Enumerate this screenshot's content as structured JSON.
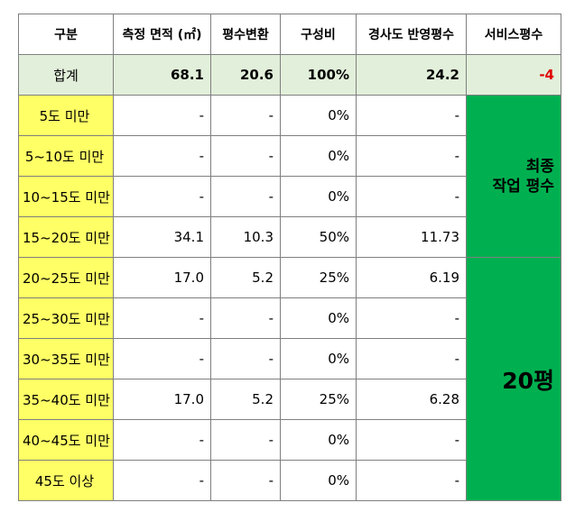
{
  "headers": [
    "구분",
    "측정 면적 (㎡)",
    "평수변환",
    "구성비",
    "경사도 반영평수",
    "서비스평수"
  ],
  "total": {
    "label": "합계",
    "area": "68.1",
    "pyeong": "20.6",
    "ratio": "100%",
    "slope_pyeong": "24.2",
    "service": "-4"
  },
  "rows": [
    {
      "label": "5도 미만",
      "area": "-",
      "pyeong": "-",
      "ratio": "0%",
      "slope_pyeong": "-"
    },
    {
      "label": "5~10도 미만",
      "area": "-",
      "pyeong": "-",
      "ratio": "0%",
      "slope_pyeong": "-"
    },
    {
      "label": "10~15도 미만",
      "area": "-",
      "pyeong": "-",
      "ratio": "0%",
      "slope_pyeong": "-"
    },
    {
      "label": "15~20도 미만",
      "area": "34.1",
      "pyeong": "10.3",
      "ratio": "50%",
      "slope_pyeong": "11.73"
    },
    {
      "label": "20~25도 미만",
      "area": "17.0",
      "pyeong": "5.2",
      "ratio": "25%",
      "slope_pyeong": "6.19"
    },
    {
      "label": "25~30도 미만",
      "area": "-",
      "pyeong": "-",
      "ratio": "0%",
      "slope_pyeong": "-"
    },
    {
      "label": "30~35도 미만",
      "area": "-",
      "pyeong": "-",
      "ratio": "0%",
      "slope_pyeong": "-"
    },
    {
      "label": "35~40도 미만",
      "area": "17.0",
      "pyeong": "5.2",
      "ratio": "25%",
      "slope_pyeong": "6.28"
    },
    {
      "label": "40~45도 미만",
      "area": "-",
      "pyeong": "-",
      "ratio": "0%",
      "slope_pyeong": "-"
    },
    {
      "label": "45도 이상",
      "area": "-",
      "pyeong": "-",
      "ratio": "0%",
      "slope_pyeong": "-"
    }
  ],
  "final_label_line1": "최종",
  "final_label_line2": "작업 평수",
  "final_value": "20평",
  "colors": {
    "header_total_bg": "#e2efda",
    "label_bg": "#ffff66",
    "green": "#00b050",
    "negative": "#e00000"
  }
}
